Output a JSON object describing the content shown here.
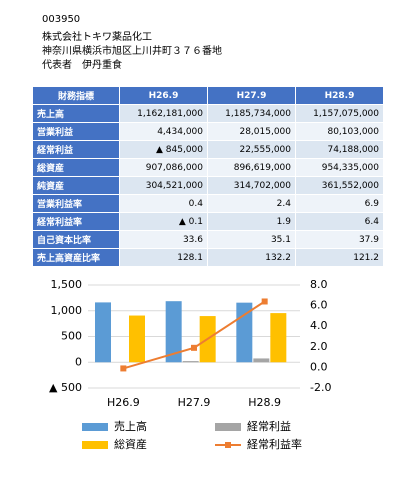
{
  "header": {
    "lines": [
      "003950",
      "株式会社トキワ薬品化工",
      "神奈川県横浜市旭区上川井町３７６番地",
      "代表者　伊丹重食"
    ]
  },
  "table": {
    "header": [
      "財務指標",
      "H26.9",
      "H27.9",
      "H28.9"
    ],
    "rows": [
      [
        "売上高",
        "1,162,181,000",
        "1,185,734,000",
        "1,157,075,000"
      ],
      [
        "営業利益",
        "4,434,000",
        "28,015,000",
        "80,103,000"
      ],
      [
        "経常利益",
        "▲ 845,000",
        "22,555,000",
        "74,188,000"
      ],
      [
        "総資産",
        "907,086,000",
        "896,619,000",
        "954,335,000"
      ],
      [
        "純資産",
        "304,521,000",
        "314,702,000",
        "361,552,000"
      ],
      [
        "営業利益率",
        "0.4",
        "2.4",
        "6.9"
      ],
      [
        "経常利益率",
        "▲ 0.1",
        "1.9",
        "6.4"
      ],
      [
        "自己資本比率",
        "33.6",
        "35.1",
        "37.9"
      ],
      [
        "売上高資産比率",
        "128.1",
        "132.2",
        "121.2"
      ]
    ]
  },
  "chart_data": {
    "type": "bar",
    "categories": [
      "H26.9",
      "H27.9",
      "H28.9"
    ],
    "series": [
      {
        "name": "売上高",
        "color": "#5b9bd5",
        "values": [
          1162.181,
          1185.734,
          1157.075
        ]
      },
      {
        "name": "経常利益",
        "color": "#a5a5a5",
        "values": [
          -0.845,
          22.555,
          74.188
        ]
      },
      {
        "name": "総資産",
        "color": "#ffc000",
        "values": [
          907.086,
          896.619,
          954.335
        ]
      },
      {
        "name": "経常利益率",
        "color": "#ed7d31",
        "type": "line",
        "axis": "y2",
        "values": [
          -0.1,
          1.9,
          6.4
        ]
      }
    ],
    "ylim": [
      -500,
      1500
    ],
    "yticks": [
      {
        "value": -500,
        "label": "▲ 500"
      },
      0,
      500,
      {
        "value": 1000,
        "label": "1,000"
      },
      {
        "value": 1500,
        "label": "1,500"
      }
    ],
    "y2lim": [
      -2,
      8
    ],
    "y2ticks": [
      {
        "value": -2,
        "label": "-2.0"
      },
      {
        "value": 0,
        "label": "0.0"
      },
      {
        "value": 2,
        "label": "2.0"
      },
      {
        "value": 4,
        "label": "4.0"
      },
      {
        "value": 6,
        "label": "6.0"
      },
      {
        "value": 8,
        "label": "8.0"
      }
    ],
    "grid": true
  }
}
